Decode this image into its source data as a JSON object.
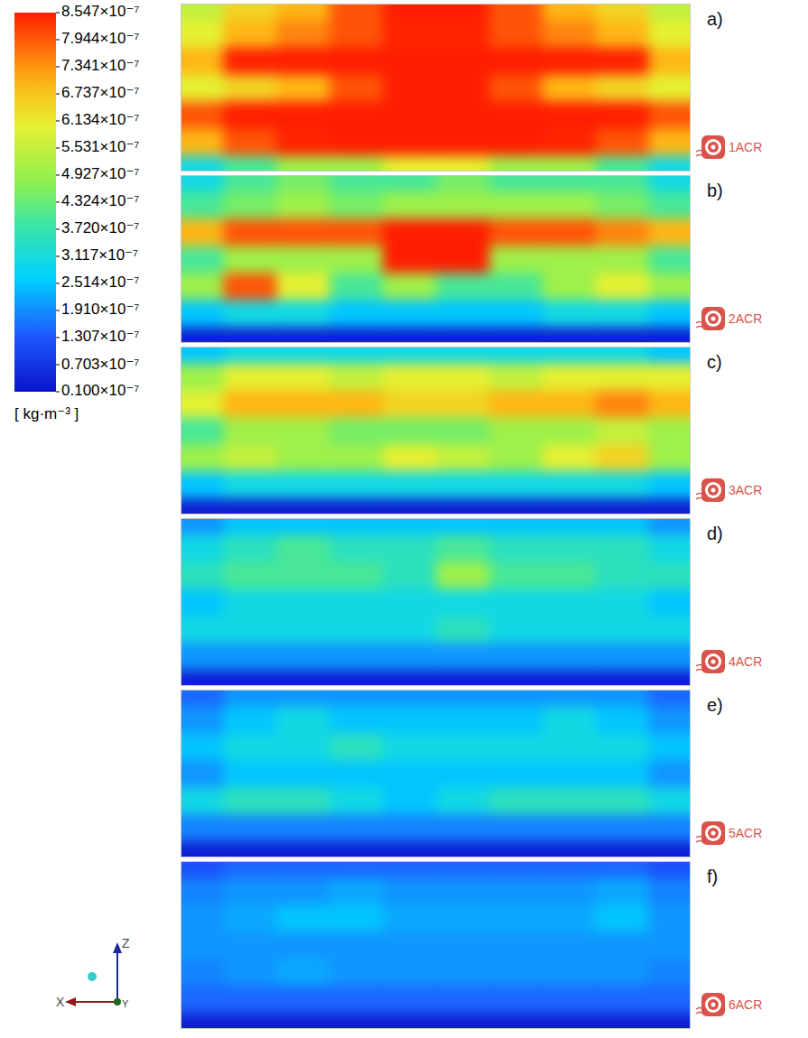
{
  "chart_data": {
    "type": "heatmap",
    "color_bar": {
      "range": [
        1e-08,
        8.547e-07
      ],
      "unit": "[ kg·m⁻³ ]",
      "ticks": [
        {
          "value": 8.547e-07,
          "label": "8.547×10⁻⁷"
        },
        {
          "value": 7.944e-07,
          "label": "7.944×10⁻⁷"
        },
        {
          "value": 7.341e-07,
          "label": "7.341×10⁻⁷"
        },
        {
          "value": 6.737e-07,
          "label": "6.737×10⁻⁷"
        },
        {
          "value": 6.134e-07,
          "label": "6.134×10⁻⁷"
        },
        {
          "value": 5.531e-07,
          "label": "5.531×10⁻⁷"
        },
        {
          "value": 4.927e-07,
          "label": "4.927×10⁻⁷"
        },
        {
          "value": 4.324e-07,
          "label": "4.324×10⁻⁷"
        },
        {
          "value": 3.72e-07,
          "label": "3.720×10⁻⁷"
        },
        {
          "value": 3.117e-07,
          "label": "3.117×10⁻⁷"
        },
        {
          "value": 2.514e-07,
          "label": "2.514×10⁻⁷"
        },
        {
          "value": 1.91e-07,
          "label": "1.910×10⁻⁷"
        },
        {
          "value": 1.307e-07,
          "label": "1.307×10⁻⁷"
        },
        {
          "value": 7.03e-08,
          "label": "0.703×10⁻⁷"
        },
        {
          "value": 1e-08,
          "label": "0.100×10⁻⁷"
        }
      ]
    },
    "axis_labels": {
      "z": "Z",
      "x": "X",
      "y": "Y"
    },
    "panels": [
      {
        "letter": "a)",
        "label": "1ACR",
        "cells": [
          [
            5.5e-07,
            6.5e-07,
            7e-07,
            8e-07,
            9e-07,
            9e-07,
            8e-07,
            7e-07,
            6.5e-07,
            5.5e-07
          ],
          [
            6e-07,
            7e-07,
            7.5e-07,
            8e-07,
            8.5e-07,
            8.5e-07,
            8e-07,
            7.5e-07,
            7e-07,
            6e-07
          ],
          [
            7e-07,
            8.5e-07,
            9e-07,
            9e-07,
            9e-07,
            9e-07,
            9e-07,
            9e-07,
            8.5e-07,
            7e-07
          ],
          [
            6e-07,
            6.5e-07,
            7e-07,
            8e-07,
            9e-07,
            9e-07,
            8e-07,
            7e-07,
            6.5e-07,
            6e-07
          ],
          [
            8e-07,
            9e-07,
            9e-07,
            9e-07,
            9e-07,
            9e-07,
            9e-07,
            9e-07,
            9e-07,
            8e-07
          ],
          [
            7e-07,
            8e-07,
            8.5e-07,
            9e-07,
            9e-07,
            9e-07,
            9e-07,
            8.5e-07,
            8e-07,
            7e-07
          ],
          [
            3e-07,
            4e-07,
            5e-07,
            5e-07,
            6e-07,
            6e-07,
            5e-07,
            5e-07,
            4e-07,
            3e-07
          ]
        ]
      },
      {
        "letter": "b)",
        "label": "2ACR",
        "cells": [
          [
            3e-07,
            4e-07,
            4.5e-07,
            4e-07,
            4e-07,
            4.5e-07,
            4e-07,
            4e-07,
            4e-07,
            3e-07
          ],
          [
            4e-07,
            4.5e-07,
            5e-07,
            4.5e-07,
            5e-07,
            5e-07,
            5e-07,
            5e-07,
            4.5e-07,
            4e-07
          ],
          [
            7e-07,
            8e-07,
            8e-07,
            8e-07,
            9e-07,
            9e-07,
            8e-07,
            8e-07,
            7.5e-07,
            7e-07
          ],
          [
            4e-07,
            5e-07,
            5e-07,
            5e-07,
            9e-07,
            9e-07,
            5e-07,
            5e-07,
            5e-07,
            4e-07
          ],
          [
            5e-07,
            8e-07,
            6e-07,
            4e-07,
            5e-07,
            4e-07,
            4e-07,
            5e-07,
            6e-07,
            5e-07
          ],
          [
            2.5e-07,
            3e-07,
            3e-07,
            2.5e-07,
            2.5e-07,
            2.5e-07,
            2.5e-07,
            3e-07,
            3e-07,
            2.5e-07
          ],
          [
            3e-08,
            3e-08,
            3e-08,
            3e-08,
            3e-08,
            3e-08,
            3e-08,
            3e-08,
            3e-08,
            3e-08
          ]
        ]
      },
      {
        "letter": "c)",
        "label": "3ACR",
        "cells": [
          [
            2.5e-07,
            3e-07,
            3e-07,
            3e-07,
            3e-07,
            3e-07,
            3e-07,
            3e-07,
            3e-07,
            2.5e-07
          ],
          [
            5e-07,
            6e-07,
            6e-07,
            5.5e-07,
            6e-07,
            6e-07,
            5.5e-07,
            6e-07,
            6e-07,
            6e-07
          ],
          [
            6e-07,
            7e-07,
            7e-07,
            7e-07,
            6.5e-07,
            6.5e-07,
            7e-07,
            7e-07,
            7.5e-07,
            7e-07
          ],
          [
            4e-07,
            5e-07,
            5e-07,
            4.5e-07,
            4.5e-07,
            4.5e-07,
            5e-07,
            5e-07,
            5.5e-07,
            5e-07
          ],
          [
            5e-07,
            5.5e-07,
            5e-07,
            5e-07,
            6e-07,
            5.5e-07,
            5e-07,
            6e-07,
            6.5e-07,
            5e-07
          ],
          [
            2.5e-07,
            3e-07,
            3e-07,
            3e-07,
            3e-07,
            3e-07,
            3e-07,
            3e-07,
            3e-07,
            2.5e-07
          ],
          [
            3e-08,
            3e-08,
            3e-08,
            3e-08,
            3e-08,
            3e-08,
            3e-08,
            3e-08,
            3e-08,
            3e-08
          ]
        ]
      },
      {
        "letter": "d)",
        "label": "4ACR",
        "cells": [
          [
            2e-07,
            2.5e-07,
            2.5e-07,
            2.5e-07,
            2.5e-07,
            2.5e-07,
            2.5e-07,
            2.5e-07,
            2.5e-07,
            2e-07
          ],
          [
            3e-07,
            3.5e-07,
            4e-07,
            3.5e-07,
            3.5e-07,
            4e-07,
            3.5e-07,
            3.5e-07,
            3.5e-07,
            3e-07
          ],
          [
            3.5e-07,
            4e-07,
            4e-07,
            4e-07,
            3.5e-07,
            5e-07,
            4e-07,
            4e-07,
            3.5e-07,
            3.5e-07
          ],
          [
            2.5e-07,
            3e-07,
            3e-07,
            3e-07,
            3e-07,
            3e-07,
            3e-07,
            3e-07,
            3e-07,
            2.5e-07
          ],
          [
            3e-07,
            3e-07,
            3e-07,
            3e-07,
            3e-07,
            3.5e-07,
            3e-07,
            3e-07,
            3e-07,
            3e-07
          ],
          [
            2e-07,
            2e-07,
            2e-07,
            2e-07,
            2e-07,
            2e-07,
            2e-07,
            2e-07,
            2e-07,
            2e-07
          ],
          [
            3e-08,
            3e-08,
            3e-08,
            3e-08,
            3e-08,
            3e-08,
            3e-08,
            3e-08,
            3e-08,
            3e-08
          ]
        ]
      },
      {
        "letter": "e)",
        "label": "5ACR",
        "cells": [
          [
            1.5e-07,
            2e-07,
            2e-07,
            2e-07,
            2e-07,
            2e-07,
            2e-07,
            2e-07,
            2e-07,
            1.5e-07
          ],
          [
            2e-07,
            2.5e-07,
            3e-07,
            2.5e-07,
            2.5e-07,
            2.5e-07,
            2.5e-07,
            3e-07,
            2.5e-07,
            2e-07
          ],
          [
            2.5e-07,
            3e-07,
            3e-07,
            3.5e-07,
            3e-07,
            3e-07,
            3e-07,
            3e-07,
            3e-07,
            2.5e-07
          ],
          [
            2e-07,
            2.5e-07,
            2.5e-07,
            2.5e-07,
            2.5e-07,
            2.5e-07,
            2.5e-07,
            2.5e-07,
            2.5e-07,
            2e-07
          ],
          [
            3e-07,
            3.5e-07,
            3.5e-07,
            3e-07,
            2.5e-07,
            3e-07,
            3.5e-07,
            3.5e-07,
            3.5e-07,
            3e-07
          ],
          [
            1.8e-07,
            1.8e-07,
            1.8e-07,
            1.8e-07,
            1.8e-07,
            1.8e-07,
            1.8e-07,
            1.8e-07,
            1.8e-07,
            1.8e-07
          ],
          [
            3e-08,
            3e-08,
            3e-08,
            3e-08,
            3e-08,
            3e-08,
            3e-08,
            3e-08,
            3e-08,
            3e-08
          ]
        ]
      },
      {
        "letter": "f)",
        "label": "6ACR",
        "cells": [
          [
            1.2e-07,
            1.5e-07,
            1.5e-07,
            1.5e-07,
            1.5e-07,
            1.5e-07,
            1.5e-07,
            1.5e-07,
            1.5e-07,
            1.2e-07
          ],
          [
            1.8e-07,
            2e-07,
            2e-07,
            2.2e-07,
            2e-07,
            2e-07,
            2e-07,
            2e-07,
            2.2e-07,
            1.8e-07
          ],
          [
            2e-07,
            2.2e-07,
            2.5e-07,
            2.5e-07,
            2.2e-07,
            2.2e-07,
            2.2e-07,
            2.2e-07,
            2.5e-07,
            2e-07
          ],
          [
            2e-07,
            2e-07,
            2e-07,
            2e-07,
            2e-07,
            2e-07,
            2e-07,
            2e-07,
            2e-07,
            2e-07
          ],
          [
            1.8e-07,
            2e-07,
            2.2e-07,
            2e-07,
            2e-07,
            2e-07,
            2e-07,
            2e-07,
            2e-07,
            1.8e-07
          ],
          [
            1.5e-07,
            1.5e-07,
            1.5e-07,
            1.5e-07,
            1.5e-07,
            1.5e-07,
            1.5e-07,
            1.5e-07,
            1.5e-07,
            1.5e-07
          ],
          [
            3e-08,
            3e-08,
            3e-08,
            3e-08,
            3e-08,
            3e-08,
            3e-08,
            3e-08,
            3e-08,
            3e-08
          ]
        ]
      }
    ]
  }
}
